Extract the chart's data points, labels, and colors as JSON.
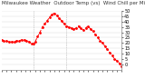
{
  "title": "Milwaukee Weather  Outdoor Temp (vs)  Wind Chill per Minute (Last 24 Hours)",
  "line_color": "#ff0000",
  "bg_color": "#ffffff",
  "grid_color": "#cccccc",
  "vline_color": "#aaaaaa",
  "ylim": [
    -5,
    50
  ],
  "yticks": [
    0,
    5,
    10,
    15,
    20,
    25,
    30,
    35,
    40,
    45,
    50
  ],
  "vlines": [
    0.27,
    0.54
  ],
  "x": [
    0.0,
    0.021,
    0.042,
    0.063,
    0.084,
    0.105,
    0.126,
    0.147,
    0.168,
    0.189,
    0.21,
    0.231,
    0.252,
    0.265,
    0.28,
    0.3,
    0.32,
    0.34,
    0.36,
    0.38,
    0.4,
    0.42,
    0.44,
    0.46,
    0.48,
    0.5,
    0.52,
    0.54,
    0.56,
    0.58,
    0.6,
    0.62,
    0.64,
    0.66,
    0.68,
    0.7,
    0.72,
    0.74,
    0.76,
    0.78,
    0.8,
    0.82,
    0.84,
    0.86,
    0.88,
    0.9,
    0.92,
    0.94,
    0.96,
    0.98,
    1.0
  ],
  "y": [
    23,
    22,
    22,
    21,
    21,
    21,
    22,
    22,
    23,
    23,
    22,
    21,
    19,
    19,
    21,
    26,
    30,
    35,
    38,
    41,
    44,
    47,
    48,
    46,
    43,
    41,
    38,
    36,
    35,
    34,
    33,
    34,
    36,
    34,
    32,
    34,
    36,
    33,
    31,
    28,
    25,
    22,
    20,
    17,
    14,
    11,
    8,
    5,
    3,
    1,
    -2
  ],
  "title_fontsize": 4.0,
  "tick_fontsize": 3.5,
  "linewidth": 0.7,
  "markersize": 1.0,
  "num_xticks": 26
}
